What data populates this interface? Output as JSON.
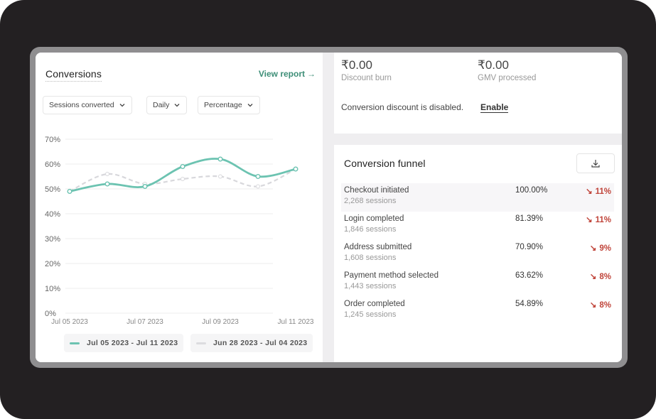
{
  "colors": {
    "current_series": "#6cc3b1",
    "previous_series": "#d8d8dc",
    "accent": "#3d8e77",
    "negative": "#c0443a"
  },
  "conversions": {
    "title": "Conversions",
    "view_report": "View report",
    "view_report_icon": "arrow-right-icon",
    "dropdowns": [
      {
        "label": "Sessions converted",
        "icon": "chevron-down-icon"
      },
      {
        "label": "Daily",
        "icon": "chevron-down-icon"
      },
      {
        "label": "Percentage",
        "icon": "chevron-down-icon"
      }
    ]
  },
  "chart_data": {
    "type": "line",
    "x": [
      "Jul 05 2023",
      "Jul 06 2023",
      "Jul 07 2023",
      "Jul 08 2023",
      "Jul 09 2023",
      "Jul 10 2023",
      "Jul 11 2023"
    ],
    "x_tick_labels": [
      "Jul 05 2023",
      "Jul 07 2023",
      "Jul 09 2023",
      "Jul 11 2023"
    ],
    "y_tick_labels": [
      "70%",
      "60%",
      "50%",
      "40%",
      "30%",
      "20%",
      "10%",
      "0%"
    ],
    "ylim": [
      0,
      70
    ],
    "grid": true,
    "legend_position": "bottom",
    "series": [
      {
        "name": "Jul 05 2023 - Jul 11 2023",
        "values": [
          49,
          52,
          51,
          59,
          62,
          55,
          58
        ],
        "style": "solid"
      },
      {
        "name": "Jun 28 2023 - Jul 04 2023",
        "values": [
          49,
          56,
          52,
          54,
          55,
          51,
          58
        ],
        "style": "dashed"
      }
    ]
  },
  "summary": {
    "discount_burn_value": "₹0.00",
    "discount_burn_label": "Discount burn",
    "gmv_value": "₹0.00",
    "gmv_label": "GMV processed",
    "disabled_message": "Conversion discount is disabled.",
    "enable_label": "Enable"
  },
  "funnel": {
    "title": "Conversion funnel",
    "download_icon": "download-icon",
    "rows": [
      {
        "name": "Checkout initiated",
        "sessions": "2,268 sessions",
        "percent": "100.00%",
        "change": "11%",
        "change_icon": "arrow-down-right-icon"
      },
      {
        "name": "Login completed",
        "sessions": "1,846 sessions",
        "percent": "81.39%",
        "change": "11%",
        "change_icon": "arrow-down-right-icon"
      },
      {
        "name": "Address submitted",
        "sessions": "1,608 sessions",
        "percent": "70.90%",
        "change": "9%",
        "change_icon": "arrow-down-right-icon"
      },
      {
        "name": "Payment method selected",
        "sessions": "1,443 sessions",
        "percent": "63.62%",
        "change": "8%",
        "change_icon": "arrow-down-right-icon"
      },
      {
        "name": "Order completed",
        "sessions": "1,245 sessions",
        "percent": "54.89%",
        "change": "8%",
        "change_icon": "arrow-down-right-icon"
      }
    ]
  }
}
